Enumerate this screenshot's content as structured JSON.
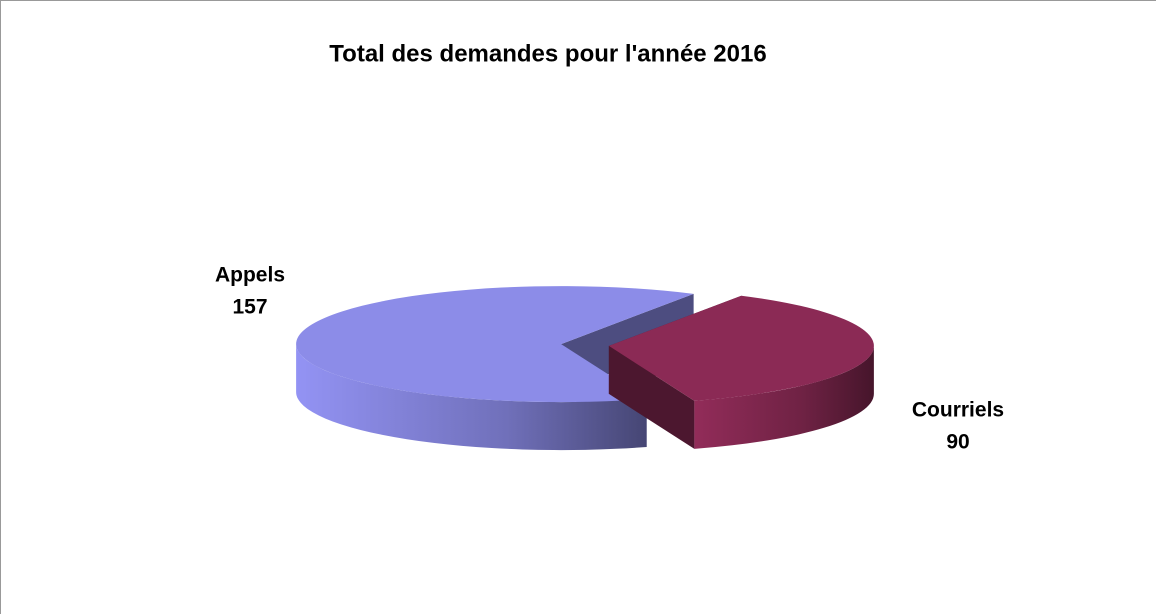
{
  "chart_data": {
    "type": "pie",
    "title": "Total des demandes pour l'année 2016",
    "categories": [
      "Appels",
      "Courriels"
    ],
    "values": [
      157,
      90
    ],
    "colors": [
      "#8c8ce8",
      "#8b2a55"
    ]
  }
}
